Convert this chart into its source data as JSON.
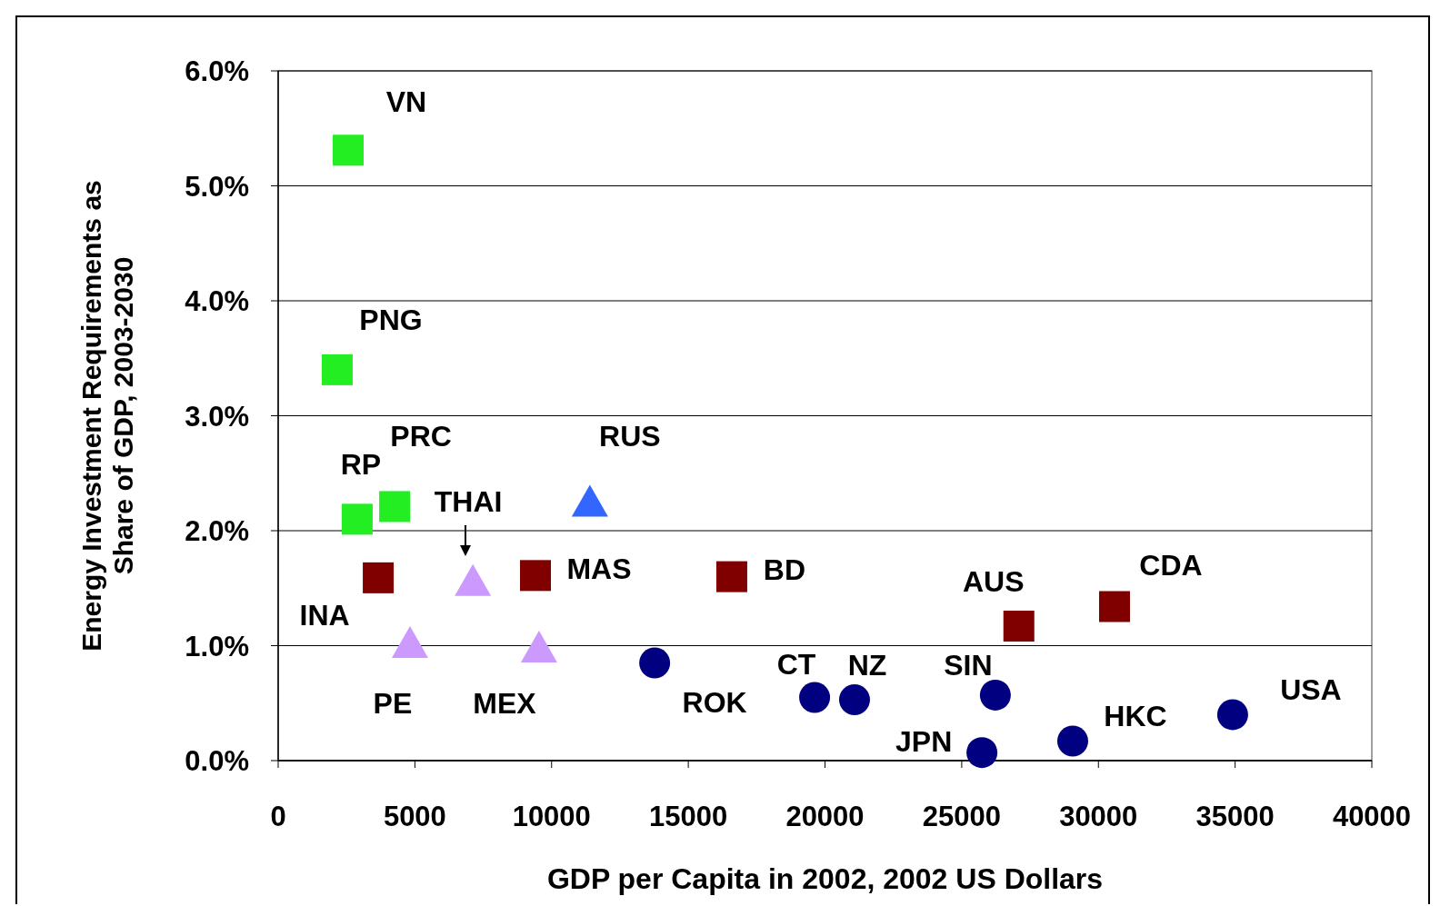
{
  "chart_data": {
    "type": "scatter",
    "xlabel": "GDP per Capita in 2002, 2002 US Dollars",
    "ylabel": "Energy Investment Requirements as\nShare of GDP, 2003-2030",
    "xlim": [
      0,
      40000
    ],
    "xticks": [
      0,
      5000,
      10000,
      15000,
      20000,
      25000,
      30000,
      35000,
      40000
    ],
    "ylim": [
      0,
      6
    ],
    "yticks": [
      {
        "value": 0,
        "label": "0.0%"
      },
      {
        "value": 1,
        "label": "1.0%"
      },
      {
        "value": 2,
        "label": "2.0%"
      },
      {
        "value": 3,
        "label": "3.0%"
      },
      {
        "value": 4,
        "label": "4.0%"
      },
      {
        "value": 5,
        "label": "5.0%"
      },
      {
        "value": 6,
        "label": "6.0%"
      }
    ],
    "grid": "y",
    "series": [
      {
        "color": "#22ee22",
        "marker": "square",
        "x": [
          2560,
          2160,
          2890,
          4260
        ],
        "values": [
          5.31,
          3.4,
          2.1,
          2.21
        ]
      },
      {
        "color": "#800000",
        "marker": "square",
        "x": [
          3660,
          9410,
          16590,
          27090,
          30590
        ],
        "values": [
          1.59,
          1.61,
          1.6,
          1.17,
          1.34
        ]
      },
      {
        "color": "#cc99ff",
        "marker": "triangle",
        "x": [
          7120,
          4820,
          9540
        ],
        "values": [
          1.56,
          1.02,
          0.98
        ]
      },
      {
        "color": "#3366ff",
        "marker": "triangle",
        "x": [
          11400
        ],
        "values": [
          2.25
        ]
      },
      {
        "color": "#000080",
        "marker": "circle",
        "x": [
          13770,
          19620,
          21080,
          26230,
          25740,
          29060,
          34910
        ],
        "values": [
          0.85,
          0.55,
          0.53,
          0.57,
          0.07,
          0.17,
          0.4
        ]
      }
    ],
    "annotations": [
      {
        "text": "VN",
        "x": 2560,
        "y": 5.31
      },
      {
        "text": "PNG",
        "x": 2160,
        "y": 3.4
      },
      {
        "text": "RP",
        "x": 2890,
        "y": 2.1
      },
      {
        "text": "PRC",
        "x": 4260,
        "y": 2.21
      },
      {
        "text": "THAI",
        "x": 7120,
        "y": 1.56
      },
      {
        "text": "INA",
        "x": 3660,
        "y": 1.59
      },
      {
        "text": "PE",
        "x": 4820,
        "y": 1.02
      },
      {
        "text": "MEX",
        "x": 9540,
        "y": 0.98
      },
      {
        "text": "MAS",
        "x": 9410,
        "y": 1.61
      },
      {
        "text": "RUS",
        "x": 11400,
        "y": 2.25
      },
      {
        "text": "BD",
        "x": 16590,
        "y": 1.6
      },
      {
        "text": "ROK",
        "x": 13770,
        "y": 0.85
      },
      {
        "text": "CT",
        "x": 19620,
        "y": 0.55
      },
      {
        "text": "NZ",
        "x": 21080,
        "y": 0.53
      },
      {
        "text": "SIN",
        "x": 26230,
        "y": 0.57
      },
      {
        "text": "AUS",
        "x": 27090,
        "y": 1.17
      },
      {
        "text": "CDA",
        "x": 30590,
        "y": 1.34
      },
      {
        "text": "JPN",
        "x": 25740,
        "y": 0.07
      },
      {
        "text": "HKC",
        "x": 29060,
        "y": 0.17
      },
      {
        "text": "USA",
        "x": 34910,
        "y": 0.4
      }
    ]
  }
}
